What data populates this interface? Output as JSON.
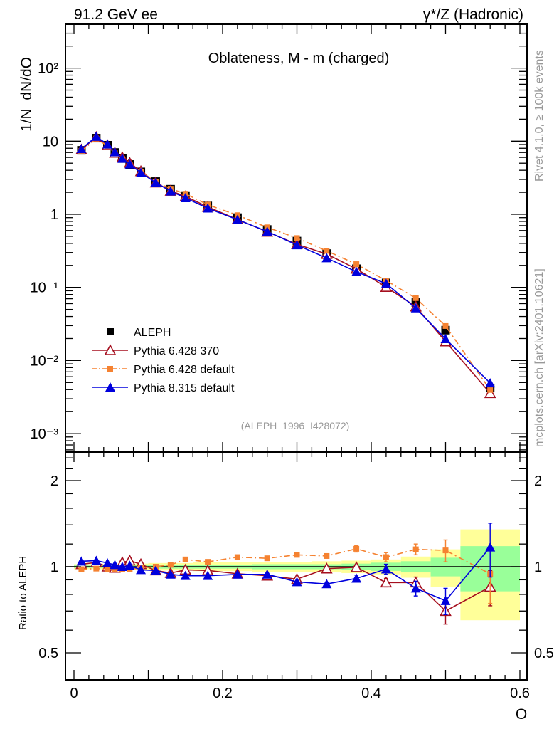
{
  "header": {
    "left": "91.2 GeV ee",
    "right": "γ*/Z (Hadronic)",
    "side_top": "Rivet 4.1.0, ≥ 100k events",
    "side_bottom": "mcplots.cern.ch [arXiv:2401.10621]"
  },
  "chart_data": [
    {
      "type": "line",
      "title": "Oblateness, M - m (charged)",
      "ylabel": "1/N  dN/dO",
      "xlabel": "O",
      "yscale": "log",
      "xlim": [
        -0.0115,
        0.608
      ],
      "ylim": [
        0.00056,
        740
      ],
      "x_ticks": [
        0,
        0.2,
        0.4,
        0.6
      ],
      "x_tick_labels": [
        "0",
        "0.2",
        "0.4",
        "0.6"
      ],
      "y_ticks": [
        0.001,
        0.01,
        0.1,
        1,
        10,
        100
      ],
      "y_tick_labels": [
        "10⁻³",
        "10⁻²",
        "10⁻¹",
        "1",
        "10",
        "10²"
      ],
      "annotation": "(ALEPH_1996_I428072)",
      "legend_position": "bottom-left",
      "x": [
        0.01,
        0.03,
        0.045,
        0.055,
        0.065,
        0.075,
        0.09,
        0.11,
        0.13,
        0.15,
        0.18,
        0.22,
        0.26,
        0.3,
        0.34,
        0.38,
        0.42,
        0.46,
        0.5,
        0.56
      ],
      "bin_edges": [
        0,
        0.02,
        0.04,
        0.05,
        0.06,
        0.07,
        0.08,
        0.1,
        0.12,
        0.14,
        0.16,
        0.2,
        0.24,
        0.28,
        0.32,
        0.36,
        0.4,
        0.44,
        0.48,
        0.52,
        0.6
      ],
      "data": {
        "name": "ALEPH",
        "values": [
          7.5,
          11,
          8.8,
          7,
          5.8,
          4.8,
          3.8,
          2.8,
          2.2,
          1.8,
          1.3,
          0.9,
          0.62,
          0.43,
          0.29,
          0.18,
          0.115,
          0.062,
          0.026,
          0.0042
        ],
        "color": "#000000"
      },
      "series": [
        {
          "name": "Pythia 6.428 370",
          "color": "#a50f1f",
          "marker": "open-triangle",
          "dash": "",
          "ratio": [
            1.02,
            1.035,
            1.0,
            0.99,
            1.035,
            1.05,
            1.02,
            0.97,
            0.95,
            0.975,
            0.97,
            0.945,
            0.93,
            0.905,
            0.985,
            0.995,
            0.88,
            0.88,
            0.7,
            0.85
          ],
          "ratio_err": [
            0.01,
            0.01,
            0.01,
            0.01,
            0.01,
            0.01,
            0.01,
            0.01,
            0.01,
            0.01,
            0.01,
            0.01,
            0.01,
            0.01,
            0.015,
            0.02,
            0.03,
            0.04,
            0.07,
            0.12
          ]
        },
        {
          "name": "Pythia 6.428 default",
          "color": "#f58231",
          "marker": "square",
          "dash": "8,4,2,4",
          "ratio": [
            0.98,
            0.985,
            0.98,
            0.98,
            0.98,
            0.98,
            0.99,
            1.0,
            1.015,
            1.06,
            1.04,
            1.08,
            1.07,
            1.1,
            1.09,
            1.155,
            1.08,
            1.15,
            1.14,
            0.944
          ],
          "ratio_err": [
            0.01,
            0.01,
            0.01,
            0.01,
            0.01,
            0.01,
            0.01,
            0.01,
            0.01,
            0.01,
            0.01,
            0.01,
            0.01,
            0.01,
            0.015,
            0.03,
            0.04,
            0.05,
            0.1,
            0.2
          ]
        },
        {
          "name": "Pythia 8.315 default",
          "color": "#0000dd",
          "marker": "triangle",
          "dash": "",
          "ratio": [
            1.045,
            1.05,
            1.03,
            1.015,
            1.0,
            1.01,
            0.975,
            0.97,
            0.94,
            0.93,
            0.93,
            0.94,
            0.94,
            0.885,
            0.87,
            0.91,
            0.98,
            0.84,
            0.76,
            1.17
          ],
          "ratio_err": [
            0.01,
            0.01,
            0.01,
            0.01,
            0.01,
            0.01,
            0.01,
            0.01,
            0.01,
            0.01,
            0.01,
            0.01,
            0.01,
            0.01,
            0.015,
            0.025,
            0.04,
            0.05,
            0.08,
            0.25
          ]
        }
      ]
    },
    {
      "type": "line",
      "ylabel": "Ratio to ALEPH",
      "yscale": "log2",
      "ylim": [
        0.4,
        2.5
      ],
      "y_ticks": [
        0.5,
        1,
        2
      ],
      "y_tick_labels": [
        "0.5",
        "1",
        "2"
      ],
      "band_total_err": [
        0.02,
        0.02,
        0.02,
        0.02,
        0.02,
        0.025,
        0.025,
        0.03,
        0.03,
        0.03,
        0.035,
        0.035,
        0.04,
        0.04,
        0.045,
        0.05,
        0.06,
        0.085,
        0.15,
        0.35
      ],
      "band_stat_err": [
        0.01,
        0.01,
        0.01,
        0.01,
        0.01,
        0.01,
        0.012,
        0.015,
        0.015,
        0.015,
        0.015,
        0.015,
        0.02,
        0.02,
        0.02,
        0.025,
        0.033,
        0.045,
        0.075,
        0.18
      ],
      "band_colors": {
        "total": "#ffff99",
        "stat": "#99ff99"
      }
    }
  ]
}
